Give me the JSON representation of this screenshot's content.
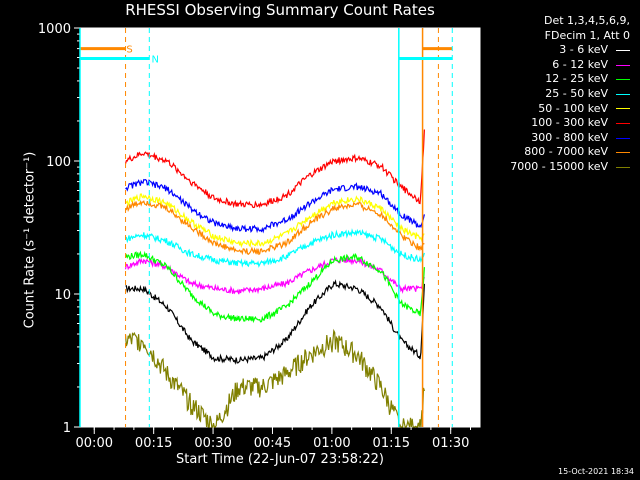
{
  "chart_data": {
    "type": "line",
    "title": "RHESSI Observing Summary Count Rates",
    "xlabel": "Start Time (22-Jun-07 23:58:22)",
    "ylabel": "Count Rate (s⁻¹ detector⁻¹)",
    "yscale": "log",
    "ylim": [
      1,
      1000
    ],
    "xlim": [
      -2,
      99
    ],
    "x_unit": "minutes after start",
    "x_ticks": [
      {
        "minutes": 1.6,
        "label": "00:00"
      },
      {
        "minutes": 16.6,
        "label": "00:15"
      },
      {
        "minutes": 31.6,
        "label": "00:30"
      },
      {
        "minutes": 46.6,
        "label": "00:45"
      },
      {
        "minutes": 61.6,
        "label": "01:00"
      },
      {
        "minutes": 76.6,
        "label": "01:15"
      },
      {
        "minutes": 91.6,
        "label": "01:30"
      }
    ],
    "y_ticks": [
      {
        "value": 1,
        "label": "1"
      },
      {
        "value": 10,
        "label": "10"
      },
      {
        "value": 100,
        "label": "100"
      },
      {
        "value": 1000,
        "label": "1000"
      }
    ],
    "legend": {
      "header": [
        "Det 1,3,4,5,6,9,",
        "FDecim 1, Att 0"
      ],
      "placement": "right-outside"
    },
    "x": [
      9.5,
      14,
      20,
      26,
      32,
      38,
      44,
      50,
      56,
      62,
      68,
      74,
      79,
      84,
      85
    ],
    "series": [
      {
        "name": "3 - 6 keV",
        "color": "#ffffff",
        "plot_color": "#000000",
        "values": [
          11,
          11,
          8,
          4.5,
          3.3,
          3.2,
          3.3,
          4.5,
          8,
          12,
          11,
          8,
          4.5,
          3.4,
          12
        ]
      },
      {
        "name": "6 - 12 keV",
        "color": "#ff00ff",
        "plot_color": "#ff00ff",
        "values": [
          16,
          18,
          16,
          12,
          11,
          10.5,
          11,
          12,
          15,
          18,
          18,
          15,
          11,
          11,
          13
        ]
      },
      {
        "name": "12 - 25 keV",
        "color": "#00ff00",
        "plot_color": "#00ff00",
        "values": [
          19,
          20,
          16,
          10,
          7,
          6.5,
          6.5,
          8,
          12,
          18,
          19,
          15,
          8.5,
          7,
          16
        ]
      },
      {
        "name": "25 - 50 keV",
        "color": "#00ffff",
        "plot_color": "#00ffff",
        "values": [
          26,
          28,
          25,
          20,
          18,
          17,
          17,
          19,
          24,
          28,
          29,
          26,
          20,
          18,
          20
        ]
      },
      {
        "name": "50 - 100 keV",
        "color": "#ffff00",
        "plot_color": "#ffff00",
        "values": [
          48,
          55,
          48,
          35,
          27,
          24,
          24,
          28,
          38,
          49,
          52,
          44,
          31,
          26,
          28
        ]
      },
      {
        "name": "100 - 300 keV",
        "color": "#ff0000",
        "plot_color": "#ff0000",
        "values": [
          100,
          115,
          100,
          70,
          52,
          47,
          47,
          55,
          78,
          100,
          105,
          92,
          64,
          50,
          180
        ]
      },
      {
        "name": "300 - 800 keV",
        "color": "#0000ff",
        "plot_color": "#0000ff",
        "values": [
          63,
          70,
          62,
          44,
          34,
          31,
          31,
          36,
          48,
          61,
          64,
          57,
          40,
          32,
          40
        ]
      },
      {
        "name": "800 - 7000 keV",
        "color": "#ff8800",
        "plot_color": "#ff8800",
        "values": [
          44,
          50,
          44,
          32,
          24,
          21,
          21,
          24,
          34,
          44,
          47,
          40,
          28,
          22,
          24
        ]
      },
      {
        "name": "7000 - 15000 keV",
        "color": "#808000",
        "plot_color": "#808000",
        "values": [
          4.5,
          4.5,
          2.5,
          1.5,
          1,
          2,
          2,
          2.5,
          3.5,
          4.5,
          3.5,
          2,
          1,
          1,
          2
        ]
      }
    ],
    "markers": [
      {
        "label": "S",
        "color": "#ff8800",
        "flag_label_min": 10.5,
        "flag_y": 700,
        "dashed_at": [
          9.5,
          88.5
        ],
        "solid_at": [
          84.5
        ],
        "bars": [
          [
            -2,
            9.5
          ],
          [
            84.5,
            92
          ]
        ]
      },
      {
        "label": "N",
        "color": "#00ffff",
        "flag_label_min": 17,
        "flag_y": 590,
        "dashed_at": [
          15.5,
          92
        ],
        "solid_at": [
          -2,
          78.5
        ],
        "bars": [
          [
            -2,
            15.5
          ],
          [
            78.5,
            92
          ]
        ]
      }
    ],
    "grid": false,
    "footer": "15-Oct-2021 18:34"
  }
}
